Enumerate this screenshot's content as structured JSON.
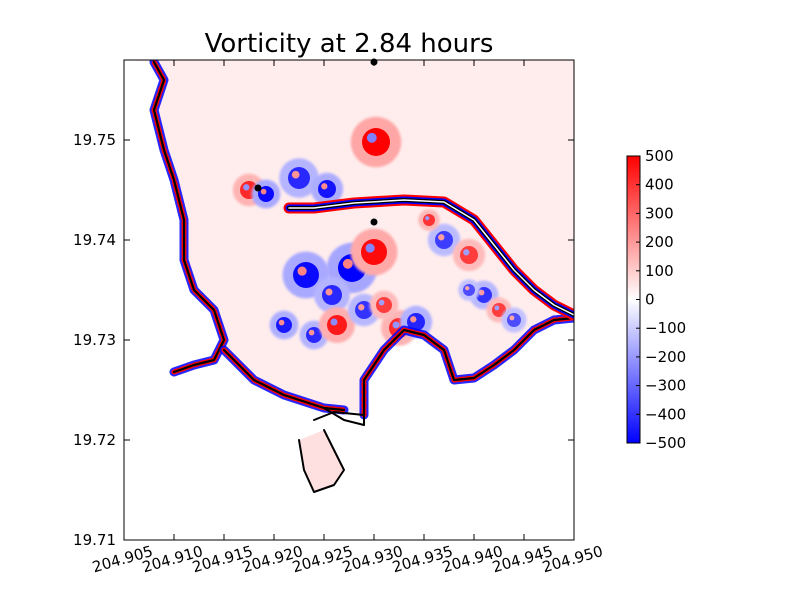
{
  "chart_data": {
    "type": "heatmap",
    "title": "Vorticity at 2.84 hours",
    "xlabel": "",
    "ylabel": "",
    "xlim": [
      204.905,
      204.95
    ],
    "ylim": [
      19.71,
      19.758
    ],
    "x_ticks": [
      204.905,
      204.91,
      204.915,
      204.92,
      204.925,
      204.93,
      204.935,
      204.94,
      204.945,
      204.95
    ],
    "x_tick_labels": [
      "204.905",
      "204.910",
      "204.915",
      "204.920",
      "204.925",
      "204.930",
      "204.935",
      "204.940",
      "204.945",
      "204.950"
    ],
    "y_ticks": [
      19.71,
      19.72,
      19.73,
      19.74,
      19.75
    ],
    "y_tick_labels": [
      "19.71",
      "19.72",
      "19.73",
      "19.74",
      "19.75"
    ],
    "grid": false,
    "colormap": "bwr",
    "colorbar": {
      "range": [
        -500,
        500
      ],
      "ticks": [
        500,
        400,
        300,
        200,
        100,
        0,
        -100,
        -200,
        -300,
        -400,
        -500
      ],
      "tick_labels": [
        "500",
        "400",
        "300",
        "200",
        "100",
        "0",
        "−100",
        "−200",
        "−300",
        "−400",
        "−500"
      ],
      "colors": {
        "low": "#0000ff",
        "mid": "#ffffff",
        "high": "#ff0000"
      }
    },
    "markers": [
      {
        "x": 204.9184,
        "y": 19.7452
      },
      {
        "x": 204.93,
        "y": 19.7418
      },
      {
        "x": 204.93,
        "y": 19.7578
      }
    ],
    "coastline": [
      [
        204.91,
        19.7268
      ],
      [
        204.912,
        19.7275
      ],
      [
        204.914,
        19.728
      ],
      [
        204.915,
        19.73
      ],
      [
        204.914,
        19.733
      ],
      [
        204.912,
        19.735
      ],
      [
        204.911,
        19.738
      ],
      [
        204.911,
        19.742
      ],
      [
        204.91,
        19.746
      ],
      [
        204.909,
        19.749
      ],
      [
        204.908,
        19.753
      ],
      [
        204.909,
        19.756
      ],
      [
        204.908,
        19.7578
      ]
    ],
    "south_coast": [
      [
        204.915,
        19.729
      ],
      [
        204.918,
        19.726
      ],
      [
        204.921,
        19.7245
      ],
      [
        204.925,
        19.7232
      ],
      [
        204.927,
        19.723
      ]
    ],
    "bay_outline": [
      [
        204.925,
        19.7232
      ],
      [
        204.927,
        19.722
      ],
      [
        204.929,
        19.7215
      ],
      [
        204.929,
        19.7225
      ],
      [
        204.926,
        19.7228
      ],
      [
        204.924,
        19.722
      ]
    ],
    "river": [
      [
        204.925,
        19.721
      ],
      [
        204.926,
        19.719
      ],
      [
        204.927,
        19.717
      ],
      [
        204.926,
        19.7155
      ],
      [
        204.924,
        19.7148
      ],
      [
        204.923,
        19.717
      ],
      [
        204.9225,
        19.72
      ]
    ],
    "east_coast": [
      [
        204.929,
        19.7225
      ],
      [
        204.929,
        19.726
      ],
      [
        204.931,
        19.729
      ],
      [
        204.933,
        19.731
      ],
      [
        204.935,
        19.7305
      ],
      [
        204.937,
        19.729
      ],
      [
        204.938,
        19.726
      ],
      [
        204.94,
        19.7262
      ],
      [
        204.942,
        19.7275
      ],
      [
        204.944,
        19.729
      ],
      [
        204.946,
        19.731
      ],
      [
        204.948,
        19.732
      ],
      [
        204.95,
        19.7322
      ]
    ],
    "breakwater": [
      [
        204.9215,
        19.7432
      ],
      [
        204.924,
        19.7432
      ],
      [
        204.928,
        19.7437
      ],
      [
        204.933,
        19.744
      ],
      [
        204.937,
        19.7438
      ],
      [
        204.94,
        19.742
      ],
      [
        204.942,
        19.7395
      ],
      [
        204.944,
        19.737
      ],
      [
        204.946,
        19.735
      ],
      [
        204.948,
        19.7335
      ],
      [
        204.95,
        19.7325
      ]
    ],
    "vortices": [
      {
        "x": 204.9302,
        "y": 19.7498,
        "strength": 500,
        "radius": 0.0014
      },
      {
        "x": 204.9175,
        "y": 19.745,
        "strength": 420,
        "radius": 0.0009
      },
      {
        "x": 204.9192,
        "y": 19.7446,
        "strength": -480,
        "radius": 0.0008
      },
      {
        "x": 204.9225,
        "y": 19.7462,
        "strength": -420,
        "radius": 0.0011
      },
      {
        "x": 204.9253,
        "y": 19.7451,
        "strength": -460,
        "radius": 0.0009
      },
      {
        "x": 204.9278,
        "y": 19.7372,
        "strength": -500,
        "radius": 0.0014
      },
      {
        "x": 204.93,
        "y": 19.7388,
        "strength": 480,
        "radius": 0.0013
      },
      {
        "x": 204.9232,
        "y": 19.7365,
        "strength": -480,
        "radius": 0.0013
      },
      {
        "x": 204.9258,
        "y": 19.7345,
        "strength": -420,
        "radius": 0.001
      },
      {
        "x": 204.921,
        "y": 19.7315,
        "strength": -450,
        "radius": 0.0008
      },
      {
        "x": 204.924,
        "y": 19.7305,
        "strength": -420,
        "radius": 0.0008
      },
      {
        "x": 204.9263,
        "y": 19.7315,
        "strength": 450,
        "radius": 0.001
      },
      {
        "x": 204.929,
        "y": 19.733,
        "strength": -400,
        "radius": 0.0009
      },
      {
        "x": 204.9325,
        "y": 19.7312,
        "strength": 420,
        "radius": 0.001
      },
      {
        "x": 204.9342,
        "y": 19.7318,
        "strength": -430,
        "radius": 0.0009
      },
      {
        "x": 204.931,
        "y": 19.7335,
        "strength": 380,
        "radius": 0.0008
      },
      {
        "x": 204.937,
        "y": 19.74,
        "strength": -380,
        "radius": 0.0009
      },
      {
        "x": 204.9395,
        "y": 19.7385,
        "strength": 380,
        "radius": 0.0009
      },
      {
        "x": 204.941,
        "y": 19.7345,
        "strength": -400,
        "radius": 0.0008
      },
      {
        "x": 204.9425,
        "y": 19.733,
        "strength": 380,
        "radius": 0.0007
      },
      {
        "x": 204.9355,
        "y": 19.742,
        "strength": 400,
        "radius": 0.0006
      },
      {
        "x": 204.9395,
        "y": 19.735,
        "strength": -350,
        "radius": 0.0006
      },
      {
        "x": 204.944,
        "y": 19.732,
        "strength": -350,
        "radius": 0.0007
      }
    ]
  }
}
